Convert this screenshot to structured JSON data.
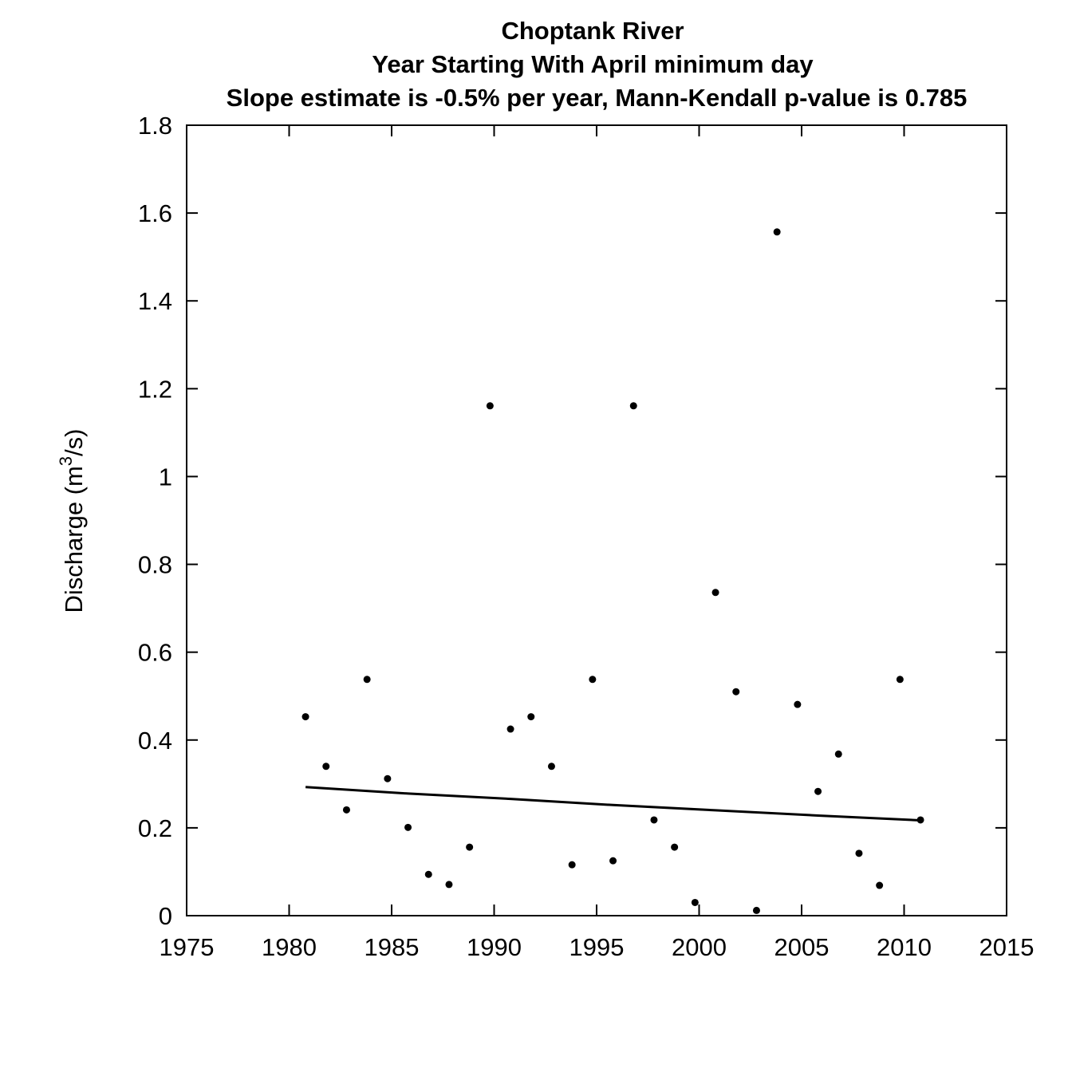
{
  "chart_data": {
    "type": "scatter",
    "title_lines": [
      "Choptank River",
      "Year Starting With April  minimum day",
      "Slope estimate is -0.5% per year, Mann-Kendall p-value is 0.785"
    ],
    "xlabel": "",
    "ylabel": {
      "prefix": "Discharge (m",
      "superscript": "3",
      "suffix": "/s)"
    },
    "xlim": [
      1975,
      2015
    ],
    "ylim": [
      0,
      1.8
    ],
    "x_ticks": [
      "1975",
      "1980",
      "1985",
      "1990",
      "1995",
      "2000",
      "2005",
      "2010",
      "2015"
    ],
    "y_ticks": [
      "0",
      "0.2",
      "0.4",
      "0.6",
      "0.8",
      "1",
      "1.2",
      "1.4",
      "1.6",
      "1.8"
    ],
    "grid": false,
    "points": [
      {
        "x": 1980.8,
        "y": 0.453
      },
      {
        "x": 1981.8,
        "y": 0.34
      },
      {
        "x": 1982.8,
        "y": 0.241
      },
      {
        "x": 1983.8,
        "y": 0.538
      },
      {
        "x": 1984.8,
        "y": 0.312
      },
      {
        "x": 1985.8,
        "y": 0.201
      },
      {
        "x": 1986.8,
        "y": 0.094
      },
      {
        "x": 1987.8,
        "y": 0.071
      },
      {
        "x": 1988.8,
        "y": 0.156
      },
      {
        "x": 1989.8,
        "y": 1.161
      },
      {
        "x": 1990.8,
        "y": 0.425
      },
      {
        "x": 1991.8,
        "y": 0.453
      },
      {
        "x": 1992.8,
        "y": 0.34
      },
      {
        "x": 1993.8,
        "y": 0.116
      },
      {
        "x": 1994.8,
        "y": 0.538
      },
      {
        "x": 1995.8,
        "y": 0.125
      },
      {
        "x": 1996.8,
        "y": 1.161
      },
      {
        "x": 1997.8,
        "y": 0.218
      },
      {
        "x": 1998.8,
        "y": 0.156
      },
      {
        "x": 1999.8,
        "y": 0.03
      },
      {
        "x": 2000.8,
        "y": 0.736
      },
      {
        "x": 2001.8,
        "y": 0.51
      },
      {
        "x": 2002.8,
        "y": 0.012
      },
      {
        "x": 2003.8,
        "y": 1.557
      },
      {
        "x": 2004.8,
        "y": 0.481
      },
      {
        "x": 2005.8,
        "y": 0.283
      },
      {
        "x": 2006.8,
        "y": 0.368
      },
      {
        "x": 2007.8,
        "y": 0.142
      },
      {
        "x": 2008.8,
        "y": 0.069
      },
      {
        "x": 2009.8,
        "y": 0.538
      },
      {
        "x": 2010.8,
        "y": 0.218
      }
    ],
    "trend_line": [
      {
        "x": 1980.8,
        "y": 0.293
      },
      {
        "x": 1985.8,
        "y": 0.278
      },
      {
        "x": 1990.8,
        "y": 0.266
      },
      {
        "x": 1995.8,
        "y": 0.252
      },
      {
        "x": 2000.8,
        "y": 0.24
      },
      {
        "x": 2005.8,
        "y": 0.228
      },
      {
        "x": 2010.8,
        "y": 0.217
      }
    ],
    "colors": {
      "points": "#000000",
      "line": "#000000",
      "frame": "#000000"
    }
  }
}
